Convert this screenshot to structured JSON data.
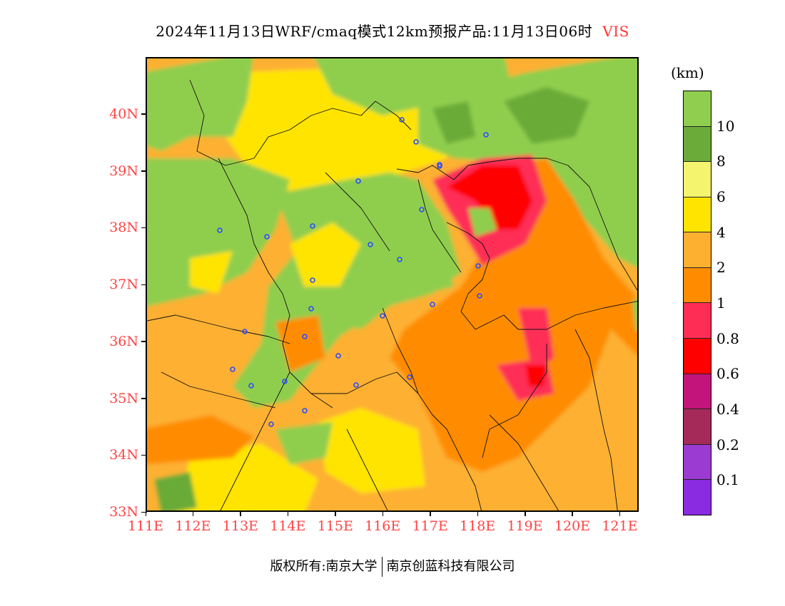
{
  "title": {
    "text": "2024年11月13日WRF/cmaq模式12km预报产品:11月13日06时",
    "variable": "VIS",
    "variable_color": "#ff3333"
  },
  "map": {
    "lon_range": [
      111,
      121.4
    ],
    "lat_range": [
      33,
      41
    ],
    "lat_labels": [
      "40N",
      "39N",
      "38N",
      "37N",
      "36N",
      "35N",
      "34N",
      "33N"
    ],
    "lon_labels": [
      "111E",
      "112E",
      "113E",
      "114E",
      "115E",
      "116E",
      "117E",
      "118E",
      "119E",
      "120E",
      "121E"
    ],
    "label_color": "#ff4444",
    "station_color": "#2b4cff"
  },
  "colorbar": {
    "unit": "(km)",
    "colors_top_to_bottom": [
      "#8fce4e",
      "#6aab39",
      "#f4f46e",
      "#ffe400",
      "#fdb030",
      "#ff8c00",
      "#fe2d56",
      "#ff0000",
      "#c2147a",
      "#a52a5a",
      "#9b3bd1",
      "#8a2be2"
    ],
    "labels": [
      "10",
      "8",
      "6",
      "4",
      "2",
      "1",
      "0.8",
      "0.6",
      "0.4",
      "0.2",
      "0.1"
    ]
  },
  "footer": {
    "left": "版权所有:南京大学",
    "right": "南京创蓝科技有限公司"
  }
}
